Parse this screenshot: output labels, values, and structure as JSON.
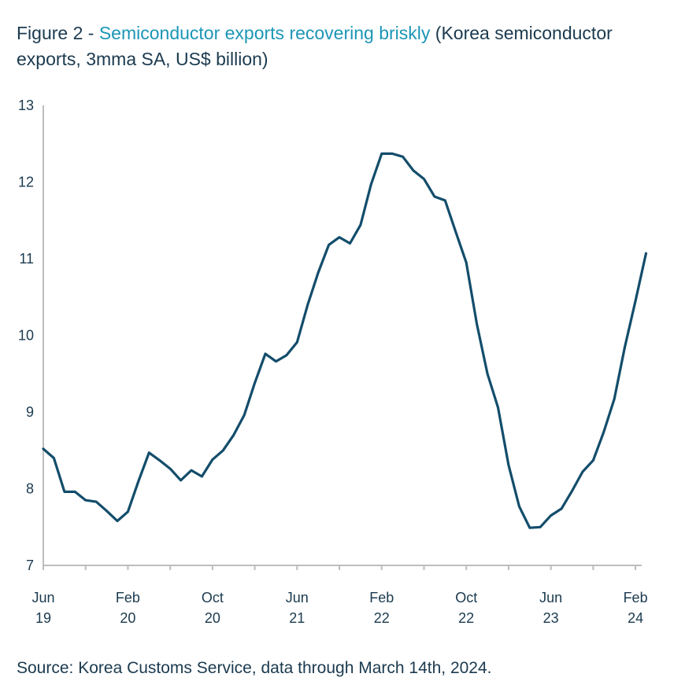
{
  "title": {
    "prefix": "Figure 2 - ",
    "highlight": "Semiconductor exports recovering briskly",
    "suffix": " (Korea semiconductor exports, 3mma SA, US$ billion)"
  },
  "source": "Source: Korea Customs Service, data through March 14th, 2024.",
  "colors": {
    "line": "#134d6b",
    "axis": "#bdbdbd",
    "text": "#1b3a4f",
    "accent": "#1c96b6"
  },
  "chart_data": {
    "type": "line",
    "ylim": [
      7,
      13
    ],
    "yticks": [
      7,
      8,
      9,
      10,
      11,
      12,
      13
    ],
    "x_tick_labels": [
      {
        "month": "Jun",
        "year": "19",
        "x": "2019-06"
      },
      {
        "month": "Feb",
        "year": "20",
        "x": "2020-02"
      },
      {
        "month": "Oct",
        "year": "20",
        "x": "2020-10"
      },
      {
        "month": "Jun",
        "year": "21",
        "x": "2021-06"
      },
      {
        "month": "Feb",
        "year": "22",
        "x": "2022-02"
      },
      {
        "month": "Oct",
        "year": "22",
        "x": "2022-10"
      },
      {
        "month": "Jun",
        "year": "23",
        "x": "2023-06"
      },
      {
        "month": "Feb",
        "year": "24",
        "x": "2024-02"
      }
    ],
    "grid": false,
    "series": [
      {
        "x": [
          "2019-06",
          "2019-07",
          "2019-08",
          "2019-09",
          "2019-10",
          "2019-11",
          "2019-12",
          "2020-01",
          "2020-02",
          "2020-03",
          "2020-04",
          "2020-05",
          "2020-06",
          "2020-07",
          "2020-08",
          "2020-09",
          "2020-10",
          "2020-11",
          "2020-12",
          "2021-01",
          "2021-02",
          "2021-03",
          "2021-04",
          "2021-05",
          "2021-06",
          "2021-07",
          "2021-08",
          "2021-09",
          "2021-10",
          "2021-11",
          "2021-12",
          "2022-01",
          "2022-02",
          "2022-03",
          "2022-04",
          "2022-05",
          "2022-06",
          "2022-07",
          "2022-08",
          "2022-09",
          "2022-10",
          "2022-11",
          "2022-12",
          "2023-01",
          "2023-02",
          "2023-03",
          "2023-04",
          "2023-05",
          "2023-06",
          "2023-07",
          "2023-08",
          "2023-09",
          "2023-10",
          "2023-11",
          "2023-12",
          "2024-01",
          "2024-02"
        ],
        "y": [
          8.52,
          8.4,
          7.96,
          7.96,
          7.85,
          7.83,
          7.71,
          7.58,
          7.7,
          8.1,
          8.47,
          8.37,
          8.26,
          8.11,
          8.24,
          8.16,
          8.38,
          8.5,
          8.7,
          8.96,
          9.38,
          9.76,
          9.66,
          9.74,
          9.91,
          10.4,
          10.82,
          11.18,
          11.28,
          11.2,
          11.44,
          11.97,
          12.37,
          12.37,
          12.33,
          12.15,
          12.04,
          11.81,
          11.76,
          11.35,
          10.95,
          10.15,
          9.5,
          9.06,
          8.31,
          7.77,
          7.49,
          7.5,
          7.65,
          7.74,
          7.97,
          8.22,
          8.37,
          8.74,
          9.17,
          9.85,
          10.45
        ]
      }
    ],
    "last_point": {
      "x": "2024-03",
      "y": 11.07
    }
  }
}
